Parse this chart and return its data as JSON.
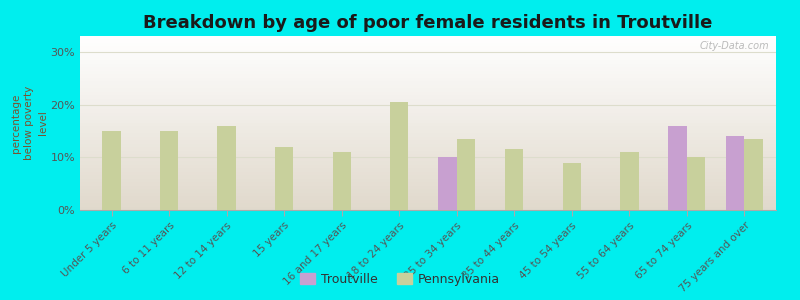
{
  "title": "Breakdown by age of poor female residents in Troutville",
  "categories": [
    "Under 5 years",
    "6 to 11 years",
    "12 to 14 years",
    "15 years",
    "16 and 17 years",
    "18 to 24 years",
    "25 to 34 years",
    "35 to 44 years",
    "45 to 54 years",
    "55 to 64 years",
    "65 to 74 years",
    "75 years and over"
  ],
  "troutville": [
    0,
    0,
    0,
    0,
    0,
    0,
    10.0,
    0,
    0,
    0,
    16.0,
    14.0
  ],
  "pennsylvania": [
    15.0,
    15.0,
    16.0,
    12.0,
    11.0,
    20.5,
    13.5,
    11.5,
    9.0,
    11.0,
    10.0,
    13.5
  ],
  "troutville_color": "#c8a0d0",
  "pennsylvania_color": "#c8d09c",
  "ylabel": "percentage\nbelow poverty\nlevel",
  "yticks": [
    0,
    10,
    20,
    30
  ],
  "ytick_labels": [
    "0%",
    "10%",
    "20%",
    "30%"
  ],
  "ylim": [
    0,
    33
  ],
  "bg_color": "#00eeee",
  "plot_bg_color": "#e8f5e0",
  "bar_width": 0.32,
  "title_fontsize": 13,
  "axis_fontsize": 7.5,
  "tick_fontsize": 8,
  "legend_labels": [
    "Troutville",
    "Pennsylvania"
  ],
  "grid_color": "#ddddcc",
  "ylabel_color": "#7a5230",
  "tick_color": "#555555"
}
